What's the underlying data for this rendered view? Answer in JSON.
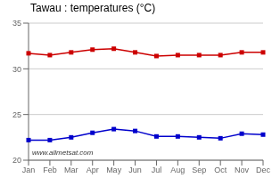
{
  "chart_data": {
    "type": "line",
    "title": "Tawau : temperatures (°C)",
    "categories": [
      "Jan",
      "Feb",
      "Mar",
      "Apr",
      "May",
      "Jun",
      "Jul",
      "Aug",
      "Sep",
      "Oct",
      "Nov",
      "Dec"
    ],
    "series": [
      {
        "color": "#cc0000",
        "marker": "square",
        "values": [
          31.7,
          31.5,
          31.8,
          32.1,
          32.2,
          31.8,
          31.4,
          31.5,
          31.5,
          31.5,
          31.8,
          31.8
        ]
      },
      {
        "color": "#0000cc",
        "marker": "square",
        "values": [
          22.2,
          22.2,
          22.5,
          23.0,
          23.4,
          23.2,
          22.6,
          22.6,
          22.5,
          22.4,
          22.9,
          22.8
        ]
      }
    ],
    "ylim": [
      20,
      35
    ],
    "yticks": [
      20,
      25,
      30,
      35
    ],
    "grid": true,
    "annotations": [
      "www.allmetsat.com"
    ]
  }
}
